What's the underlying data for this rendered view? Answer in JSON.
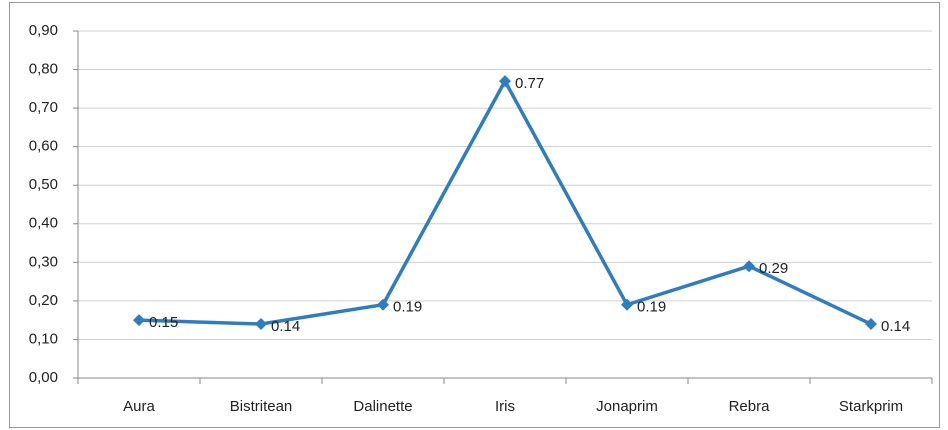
{
  "chart_data": {
    "type": "line",
    "categories": [
      "Aura",
      "Bistritean",
      "Dalinette",
      "Iris",
      "Jonaprim",
      "Rebra",
      "Starkprim"
    ],
    "series": [
      {
        "color": "#2e7ebf",
        "values": [
          0.15,
          0.14,
          0.19,
          0.77,
          0.19,
          0.29,
          0.14
        ]
      }
    ],
    "ylim": [
      0,
      0.9
    ],
    "yticks": [
      {
        "value": 0,
        "label": "0,00"
      },
      {
        "value": 0.1,
        "label": "0,10"
      },
      {
        "value": 0.2,
        "label": "0,20"
      },
      {
        "value": 0.3,
        "label": "0,30"
      },
      {
        "value": 0.4,
        "label": "0,40"
      },
      {
        "value": 0.5,
        "label": "0,50"
      },
      {
        "value": 0.6,
        "label": "0,60"
      },
      {
        "value": 0.7,
        "label": "0,70"
      },
      {
        "value": 0.8,
        "label": "0,80"
      },
      {
        "value": 0.9,
        "label": "0,90"
      }
    ],
    "grid": true
  }
}
